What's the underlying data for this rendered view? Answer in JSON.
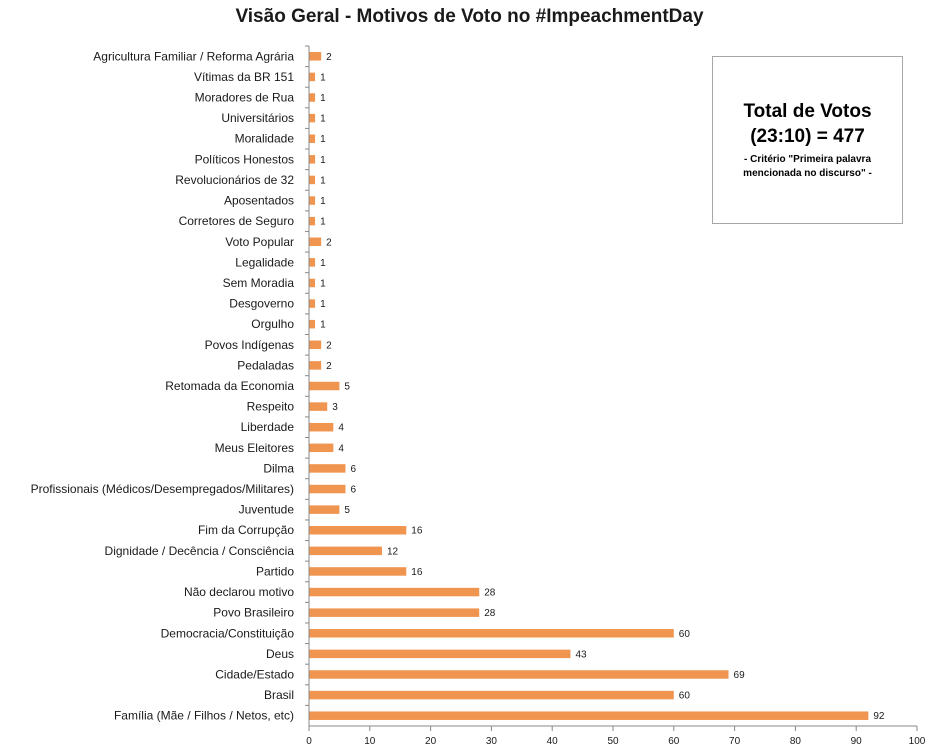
{
  "chart_data": {
    "type": "bar",
    "orientation": "horizontal",
    "title": "Visão Geral - Motivos de Voto no #ImpeachmentDay",
    "xlabel": "",
    "ylabel": "",
    "xlim": [
      0,
      100
    ],
    "x_ticks": [
      0,
      10,
      20,
      30,
      40,
      50,
      60,
      70,
      80,
      90,
      100
    ],
    "grid": false,
    "bar_color": "#F0954F",
    "categories": [
      "Agricultura Familiar / Reforma Agrária",
      "Vítimas da BR 151",
      "Moradores de Rua",
      "Universitários",
      "Moralidade",
      "Políticos Honestos",
      "Revolucionários de 32",
      "Aposentados",
      "Corretores de Seguro",
      "Voto Popular",
      "Legalidade",
      "Sem Moradia",
      "Desgoverno",
      "Orgulho",
      "Povos Indígenas",
      "Pedaladas",
      "Retomada da Economia",
      "Respeito",
      "Liberdade",
      "Meus Eleitores",
      "Dilma",
      "Profissionais (Médicos/Desempregados/Militares)",
      "Juventude",
      "Fim da Corrupção",
      "Dignidade / Decência / Consciência",
      "Partido",
      "Não declarou motivo",
      "Povo Brasileiro",
      "Democracia/Constituição",
      "Deus",
      "Cidade/Estado",
      "Brasil",
      "Família (Mãe / Filhos / Netos, etc)"
    ],
    "values": [
      2,
      1,
      1,
      1,
      1,
      1,
      1,
      1,
      1,
      2,
      1,
      1,
      1,
      1,
      2,
      2,
      5,
      3,
      4,
      4,
      6,
      6,
      5,
      16,
      12,
      16,
      28,
      28,
      60,
      43,
      69,
      60,
      92
    ]
  },
  "info_box": {
    "title_line1": "Total de Votos",
    "title_line2": "(23:10) = 477",
    "note_line1": "- Critério \"Primeira palavra",
    "note_line2": "mencionada no discurso\"  -"
  }
}
